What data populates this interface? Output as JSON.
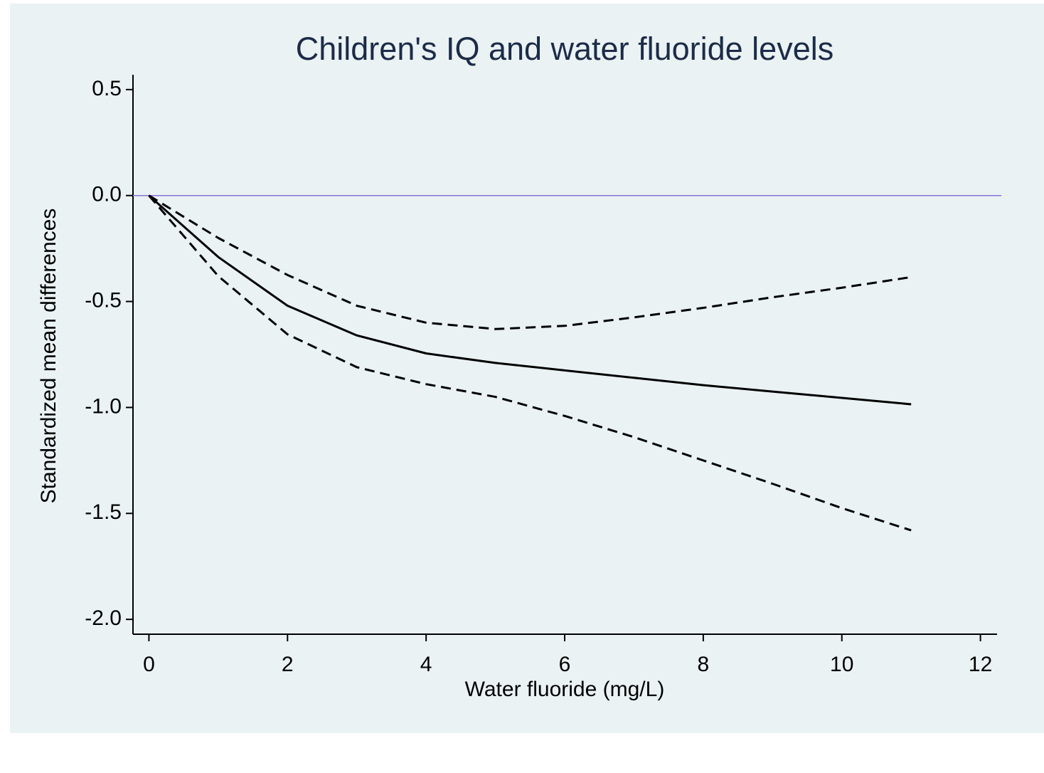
{
  "chart_data": {
    "type": "line",
    "title": "Children's IQ and water fluoride levels",
    "x_label": "Water fluoride (mg/L)",
    "y_label": "Standardized mean differences",
    "x": [
      0,
      1,
      2,
      3,
      4,
      5,
      6,
      7,
      8,
      9,
      10,
      11
    ],
    "series": [
      {
        "color": "#000000",
        "dash": "solid",
        "values": [
          0,
          -0.29,
          -0.52,
          -0.66,
          -0.745,
          -0.79,
          -0.825,
          -0.86,
          -0.895,
          -0.925,
          -0.955,
          -0.985
        ]
      },
      {
        "color": "#000000",
        "dash": "dashed",
        "values": [
          0,
          -0.2,
          -0.375,
          -0.52,
          -0.6,
          -0.63,
          -0.615,
          -0.575,
          -0.53,
          -0.48,
          -0.435,
          -0.385
        ]
      },
      {
        "color": "#000000",
        "dash": "dashed",
        "values": [
          0,
          -0.38,
          -0.655,
          -0.81,
          -0.89,
          -0.95,
          -1.04,
          -1.14,
          -1.25,
          -1.36,
          -1.475,
          -1.58
        ]
      }
    ],
    "reference_line": {
      "value": 0,
      "color": "#8b73d6"
    },
    "xlim": [
      -0.23,
      12.24
    ],
    "ylim": [
      -2.07,
      0.57
    ],
    "xticks": [
      0,
      2,
      4,
      6,
      8,
      10,
      12
    ],
    "yticks": [
      0.5,
      {
        "value": 0,
        "label": "0.0"
      },
      -0.5,
      {
        "value": -1,
        "label": "-1.0"
      },
      -1.5,
      {
        "value": -2,
        "label": "-2.0"
      }
    ],
    "grid": false
  }
}
